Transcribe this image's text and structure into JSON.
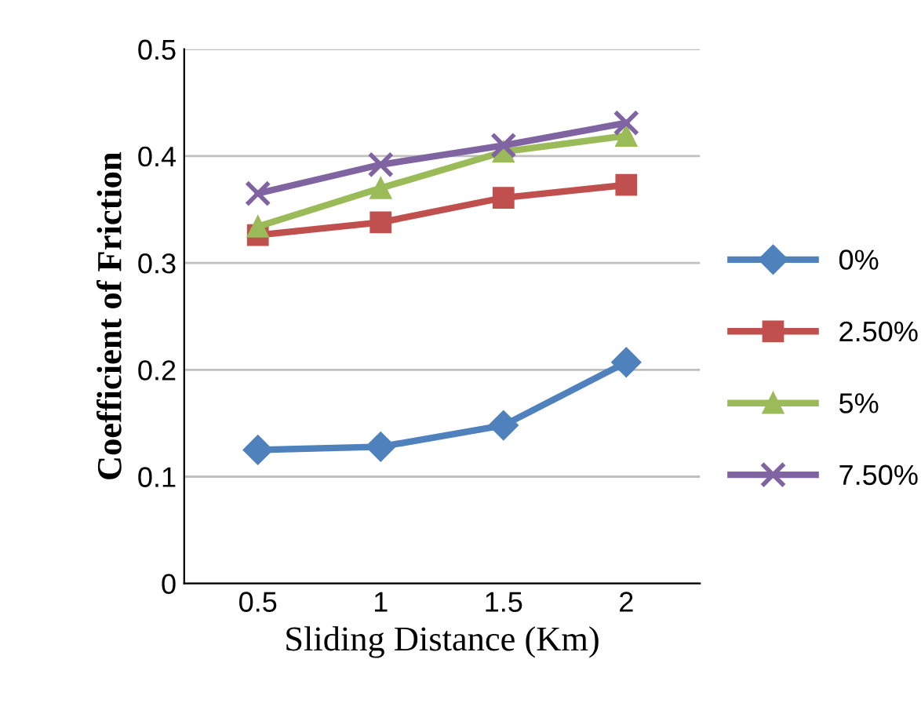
{
  "chart_data": {
    "type": "line",
    "xlabel": "Sliding Distance (Km)",
    "ylabel": "Coefficient of Friction",
    "categories": [
      "0.5",
      "1",
      "1.5",
      "2"
    ],
    "series": [
      {
        "name": "0%",
        "color": "#4f81bd",
        "marker": "diamond",
        "values": [
          0.125,
          0.128,
          0.148,
          0.207
        ]
      },
      {
        "name": "2.50%",
        "color": "#c0504d",
        "marker": "square",
        "values": [
          0.326,
          0.338,
          0.361,
          0.373
        ]
      },
      {
        "name": "5%",
        "color": "#9bbb59",
        "marker": "triangle",
        "values": [
          0.334,
          0.37,
          0.404,
          0.419
        ]
      },
      {
        "name": "7.50%",
        "color": "#8064a2",
        "marker": "cross",
        "values": [
          0.365,
          0.392,
          0.41,
          0.431
        ]
      }
    ],
    "ylim": [
      0,
      0.5
    ],
    "yticks": [
      0,
      0.1,
      0.2,
      0.3,
      0.4,
      0.5
    ],
    "grid": "y",
    "legend": "right"
  }
}
